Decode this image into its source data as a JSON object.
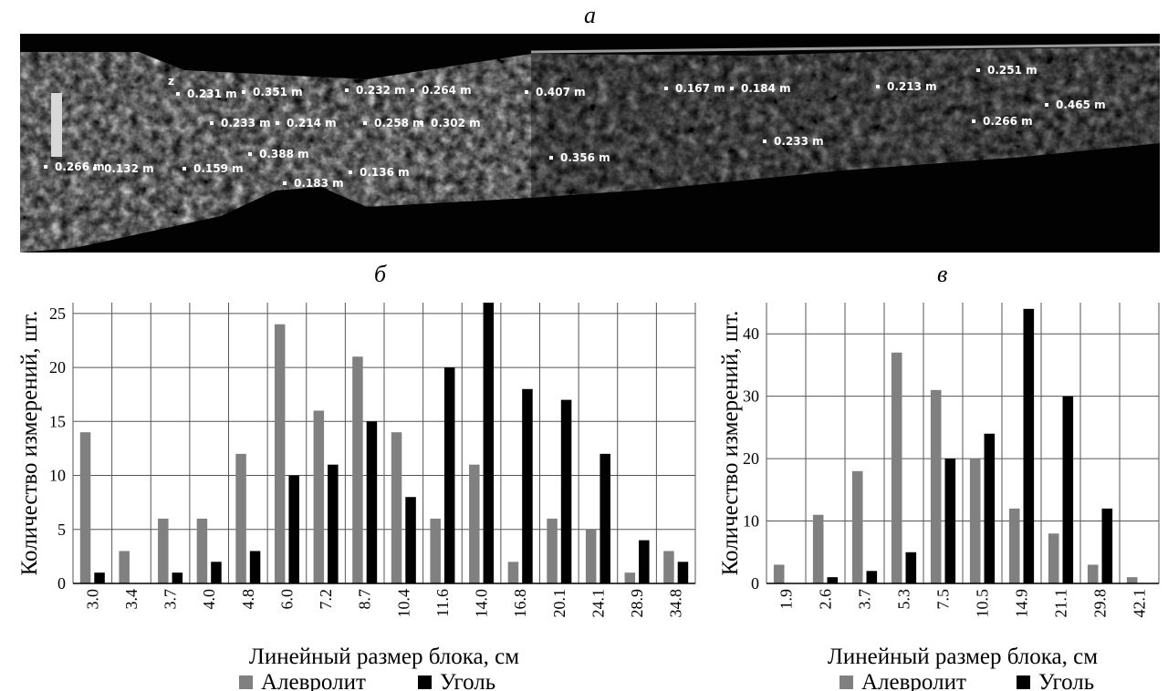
{
  "panels": {
    "a": "а",
    "b": "б",
    "c": "в"
  },
  "photo": {
    "measurements": [
      "0.231 m",
      "0.351 m",
      "0.232 m",
      "0.264 m",
      "0.407 m",
      "0.167 m",
      "0.184 m",
      "0.213 m",
      "0.251 m",
      "0.465 m",
      "0.233 m",
      "0.214 m",
      "0.258 m",
      "0.302 m",
      "0.266 m",
      "0.388 m",
      "0.356 m",
      "0.233 m",
      "0.266 m",
      "0.132 m",
      "0.159 m",
      "0.183 m",
      "0.136 m"
    ],
    "axis_marker": "z"
  },
  "colors": {
    "aleurolite": "#808080",
    "coal": "#000000"
  },
  "chart_data": [
    {
      "type": "bar",
      "categories": [
        "3.0",
        "3.4",
        "3.7",
        "4.0",
        "4.8",
        "6.0",
        "7.2",
        "8.7",
        "10.4",
        "11.6",
        "14.0",
        "16.8",
        "20.1",
        "24.1",
        "28.9",
        "34.8"
      ],
      "series": [
        {
          "name": "Алевролит",
          "values": [
            14,
            3,
            6,
            6,
            12,
            24,
            16,
            21,
            14,
            6,
            11,
            2,
            6,
            5,
            1,
            3
          ]
        },
        {
          "name": "Уголь",
          "values": [
            1,
            0,
            1,
            2,
            3,
            10,
            11,
            15,
            8,
            20,
            26,
            18,
            17,
            12,
            4,
            2
          ]
        }
      ],
      "xlabel": "Линейный размер блока, см",
      "ylabel": "Количество измерений, шт.",
      "ylim": [
        0,
        26
      ],
      "yticks": [
        0,
        5,
        10,
        15,
        20,
        25
      ],
      "grid": true,
      "legend": "bottom"
    },
    {
      "type": "bar",
      "categories": [
        "1.9",
        "2.6",
        "3.7",
        "5.3",
        "7.5",
        "10.5",
        "14.9",
        "21.1",
        "29.8",
        "42.1"
      ],
      "series": [
        {
          "name": "Алевролит",
          "values": [
            3,
            11,
            18,
            37,
            31,
            20,
            12,
            8,
            3,
            1
          ]
        },
        {
          "name": "Уголь",
          "values": [
            0,
            1,
            2,
            5,
            20,
            24,
            44,
            30,
            12,
            0
          ]
        }
      ],
      "xlabel": "Линейный размер блока, см",
      "ylabel": "Количество измерений, шт.",
      "ylim": [
        0,
        45
      ],
      "yticks": [
        0,
        10,
        20,
        30,
        40
      ],
      "grid": true,
      "legend": "bottom"
    }
  ]
}
